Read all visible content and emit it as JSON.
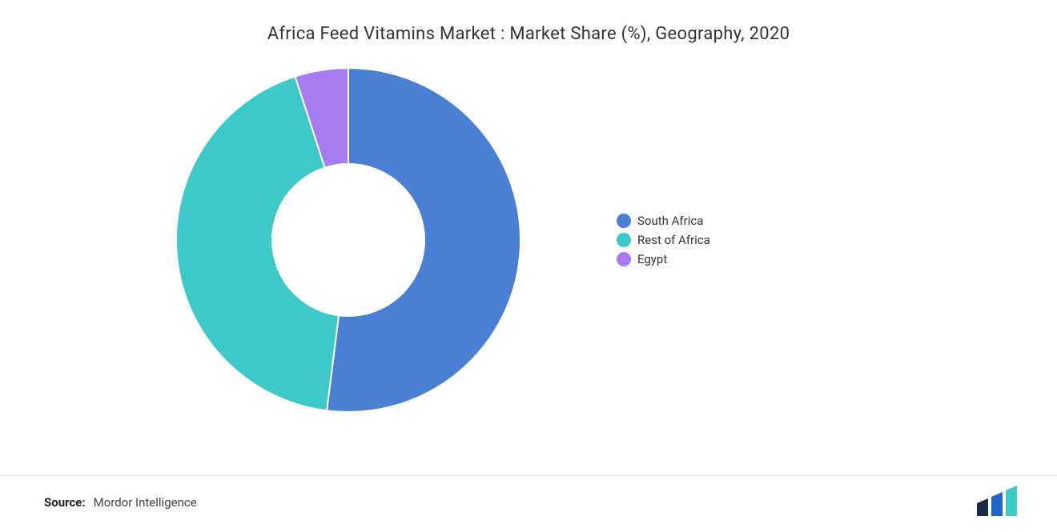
{
  "title": {
    "text": "Africa Feed Vitamins Market : Market Share (%), Geography, 2020",
    "fontsize": 22,
    "color": "#333333",
    "weight": 400
  },
  "chart": {
    "type": "donut",
    "background_color": "#ffffff",
    "outer_radius": 215,
    "inner_radius": 95,
    "start_angle_deg": -90,
    "slice_gap_color": "#ffffff",
    "slice_gap_width": 2,
    "series": [
      {
        "label": "South Africa",
        "value": 52,
        "color": "#4a80d4"
      },
      {
        "label": "Rest of Africa",
        "value": 43,
        "color": "#3ec9c9"
      },
      {
        "label": "Egypt",
        "value": 5,
        "color": "#a77cf0"
      }
    ]
  },
  "legend": {
    "position": "right",
    "fontsize": 15,
    "label_color": "#333333",
    "swatch_shape": "circle",
    "swatch_size": 18,
    "items": [
      {
        "label": "South Africa",
        "color": "#4a80d4"
      },
      {
        "label": "Rest of Africa",
        "color": "#3ec9c9"
      },
      {
        "label": "Egypt",
        "color": "#a77cf0"
      }
    ]
  },
  "source": {
    "key": "Source:",
    "value": "Mordor Intelligence",
    "key_weight": 700,
    "fontsize": 15
  },
  "logo": {
    "bar1_color": "#1a2b4a",
    "bar2_color": "#2163c9",
    "bar3_color": "#3ec9c9"
  }
}
